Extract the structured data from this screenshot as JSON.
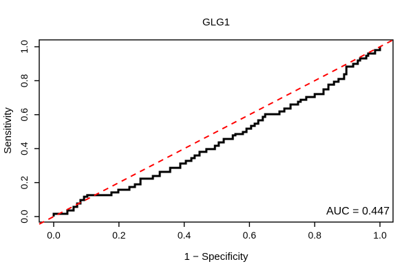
{
  "chart_data": {
    "type": "line",
    "subtype": "roc-step-curve",
    "title": "GLG1",
    "xlabel": "1 − Specificity",
    "ylabel": "Sensitivity",
    "annotation": "AUC = 0.447",
    "auc": 0.447,
    "xlim": [
      0,
      1
    ],
    "ylim": [
      0,
      1
    ],
    "x_ticks": [
      0.0,
      0.2,
      0.4,
      0.6,
      0.8,
      1.0
    ],
    "y_ticks": [
      0.0,
      0.2,
      0.4,
      0.6,
      0.8,
      1.0
    ],
    "grid": false,
    "legend_position": "none",
    "background_color": "#FFFFFF",
    "axis_color": "#000000",
    "series": [
      {
        "name": "ROC curve",
        "style": "step",
        "color": "#000000",
        "width": 3,
        "points": [
          [
            0.0,
            0.0
          ],
          [
            0.0,
            0.016
          ],
          [
            0.042,
            0.036
          ],
          [
            0.061,
            0.057
          ],
          [
            0.072,
            0.077
          ],
          [
            0.082,
            0.097
          ],
          [
            0.093,
            0.117
          ],
          [
            0.103,
            0.126
          ],
          [
            0.177,
            0.142
          ],
          [
            0.198,
            0.158
          ],
          [
            0.232,
            0.174
          ],
          [
            0.249,
            0.19
          ],
          [
            0.266,
            0.223
          ],
          [
            0.304,
            0.239
          ],
          [
            0.325,
            0.263
          ],
          [
            0.357,
            0.287
          ],
          [
            0.388,
            0.312
          ],
          [
            0.405,
            0.328
          ],
          [
            0.422,
            0.344
          ],
          [
            0.432,
            0.36
          ],
          [
            0.447,
            0.381
          ],
          [
            0.468,
            0.397
          ],
          [
            0.494,
            0.417
          ],
          [
            0.506,
            0.437
          ],
          [
            0.521,
            0.457
          ],
          [
            0.549,
            0.478
          ],
          [
            0.557,
            0.486
          ],
          [
            0.58,
            0.498
          ],
          [
            0.591,
            0.518
          ],
          [
            0.605,
            0.534
          ],
          [
            0.616,
            0.547
          ],
          [
            0.627,
            0.567
          ],
          [
            0.641,
            0.587
          ],
          [
            0.648,
            0.603
          ],
          [
            0.692,
            0.619
          ],
          [
            0.707,
            0.636
          ],
          [
            0.726,
            0.66
          ],
          [
            0.749,
            0.676
          ],
          [
            0.757,
            0.688
          ],
          [
            0.774,
            0.704
          ],
          [
            0.8,
            0.721
          ],
          [
            0.827,
            0.749
          ],
          [
            0.842,
            0.777
          ],
          [
            0.859,
            0.794
          ],
          [
            0.873,
            0.81
          ],
          [
            0.89,
            0.838
          ],
          [
            0.897,
            0.883
          ],
          [
            0.918,
            0.899
          ],
          [
            0.932,
            0.919
          ],
          [
            0.939,
            0.931
          ],
          [
            0.958,
            0.947
          ],
          [
            0.964,
            0.96
          ],
          [
            0.985,
            0.98
          ],
          [
            1.0,
            1.0
          ]
        ]
      },
      {
        "name": "chance diagonal",
        "style": "dashed",
        "color": "#FF0000",
        "width": 2,
        "dash": "8 7",
        "points": [
          [
            0,
            0
          ],
          [
            1,
            1
          ]
        ]
      }
    ]
  }
}
